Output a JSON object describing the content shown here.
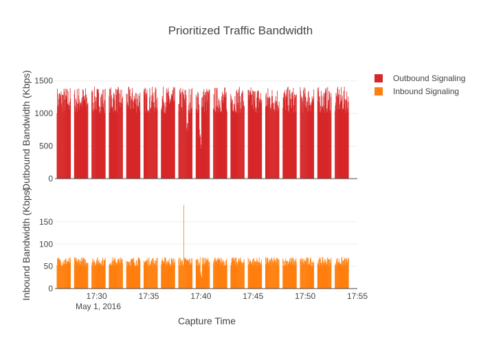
{
  "chart_data": {
    "type": "bar",
    "title": "Prioritized Traffic Bandwidth",
    "xlabel": "Capture Time",
    "x_ticks": [
      "17:30",
      "17:35",
      "17:40",
      "17:45",
      "17:50",
      "17:55"
    ],
    "x_date_label": "May 1, 2016",
    "x_range": [
      "17:26:00",
      "17:55:00"
    ],
    "bursts_start": "17:26:10",
    "burst_period_seconds": 100,
    "burst_on_seconds": 80,
    "burst_count": 17,
    "legend": {
      "position": "top-right"
    },
    "gridlines": true,
    "series": [
      {
        "name": "Outbound Signaling",
        "axis_title": "Outbound Bandwidth (Kbps)",
        "color": "#d62728",
        "y_ticks": [
          "0",
          "500",
          "1000",
          "1500"
        ],
        "ylim": [
          0,
          1550
        ],
        "base_level": 1100,
        "peak": 1490,
        "dips": [
          {
            "time": "17:38:40",
            "value": 650
          },
          {
            "time": "17:39:55",
            "value": 450
          }
        ]
      },
      {
        "name": "Inbound Signaling",
        "axis_title": "Inbound Bandwidth (Kbps)",
        "color": "#ff7f0e",
        "y_ticks": [
          "0",
          "50",
          "100",
          "150"
        ],
        "ylim": [
          0,
          190
        ],
        "base_level": 55,
        "peak": 75,
        "spike": {
          "time": "17:38:20",
          "value": 188
        },
        "dips": [
          {
            "time": "17:40:00",
            "value": 22
          }
        ]
      }
    ]
  }
}
